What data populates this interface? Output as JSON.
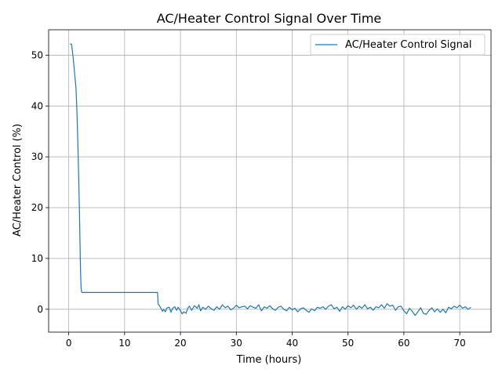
{
  "chart_data": {
    "type": "line",
    "title": "AC/Heater Control Signal Over Time",
    "xlabel": "Time (hours)",
    "ylabel": "AC/Heater Control (%)",
    "xlim": [
      -3.6,
      75.6
    ],
    "ylim": [
      -4.5,
      55
    ],
    "xticks": [
      0,
      10,
      20,
      30,
      40,
      50,
      60,
      70
    ],
    "yticks": [
      0,
      10,
      20,
      30,
      40,
      50
    ],
    "grid": true,
    "legend_position": "upper right",
    "series": [
      {
        "name": "AC/Heater Control Signal",
        "color": "#1f77b4",
        "x": [
          0.2,
          0.5,
          0.8,
          1.0,
          1.3,
          1.5,
          1.7,
          1.9,
          2.0,
          2.1,
          2.2,
          2.3,
          2.4,
          3.0,
          5.0,
          8.0,
          10.0,
          12.0,
          14.0,
          15.9,
          16.0,
          16.2,
          16.5,
          16.8,
          17.0,
          17.3,
          17.6,
          18.0,
          18.3,
          18.6,
          19.0,
          19.3,
          19.6,
          20.0,
          20.3,
          20.6,
          21.0,
          21.3,
          21.6,
          22.0,
          22.5,
          23.0,
          23.3,
          23.6,
          24.0,
          24.5,
          25.0,
          25.5,
          26.0,
          26.5,
          27.0,
          27.5,
          28.0,
          28.5,
          29.0,
          29.5,
          30.0,
          30.5,
          31.0,
          31.5,
          32.0,
          32.5,
          33.0,
          33.5,
          34.0,
          34.5,
          35.0,
          35.5,
          36.0,
          36.5,
          37.0,
          37.5,
          38.0,
          38.5,
          39.0,
          39.5,
          40.0,
          40.5,
          41.0,
          41.5,
          42.0,
          42.5,
          43.0,
          43.5,
          44.0,
          44.5,
          45.0,
          45.5,
          46.0,
          46.5,
          47.0,
          47.5,
          48.0,
          48.5,
          49.0,
          49.5,
          50.0,
          50.5,
          51.0,
          51.5,
          52.0,
          52.5,
          53.0,
          53.5,
          54.0,
          54.5,
          55.0,
          55.5,
          56.0,
          56.5,
          57.0,
          57.5,
          58.0,
          58.5,
          59.0,
          59.5,
          60.0,
          60.5,
          61.0,
          61.5,
          62.0,
          62.5,
          63.0,
          63.5,
          64.0,
          64.5,
          65.0,
          65.5,
          66.0,
          66.5,
          67.0,
          67.5,
          68.0,
          68.5,
          69.0,
          69.5,
          70.0,
          70.5,
          71.0,
          71.5,
          72.0
        ],
        "y": [
          52.2,
          52.2,
          49.5,
          47.0,
          43.5,
          38.0,
          30.0,
          20.0,
          14.0,
          8.0,
          4.5,
          3.4,
          3.3,
          3.3,
          3.3,
          3.3,
          3.3,
          3.3,
          3.3,
          3.3,
          1.0,
          0.8,
          0.2,
          -0.4,
          0.0,
          -0.5,
          0.3,
          0.4,
          -0.6,
          0.2,
          0.5,
          -0.2,
          0.4,
          -0.3,
          -0.9,
          -0.5,
          -0.8,
          0.2,
          0.6,
          -0.2,
          0.7,
          0.2,
          0.9,
          -0.3,
          0.4,
          0.0,
          0.6,
          0.1,
          -0.2,
          0.5,
          0.0,
          0.9,
          0.3,
          0.6,
          -0.1,
          0.2,
          0.8,
          0.3,
          0.5,
          0.6,
          0.1,
          0.7,
          0.4,
          0.2,
          0.9,
          -0.3,
          0.5,
          0.2,
          0.7,
          0.1,
          -0.2,
          0.4,
          0.6,
          0.0,
          -0.3,
          0.4,
          -0.1,
          0.2,
          -0.5,
          0.1,
          0.3,
          -0.2,
          -0.6,
          0.1,
          -0.3,
          0.4,
          0.2,
          0.5,
          0.0,
          0.6,
          0.9,
          0.1,
          0.4,
          -0.4,
          0.5,
          0.0,
          0.7,
          0.3,
          0.8,
          0.0,
          0.6,
          0.2,
          0.9,
          0.1,
          0.4,
          -0.2,
          0.5,
          0.3,
          0.9,
          0.2,
          1.1,
          0.6,
          0.8,
          -0.2,
          0.5,
          0.6,
          -0.3,
          -0.9,
          0.2,
          -0.4,
          -1.2,
          -0.5,
          0.3,
          -0.8,
          -1.0,
          -0.2,
          0.3,
          -0.5,
          0.1,
          -0.6,
          0.0,
          -0.7,
          0.4,
          0.1,
          0.6,
          0.3,
          0.8,
          0.2,
          0.5,
          0.0,
          0.4
        ]
      }
    ]
  }
}
